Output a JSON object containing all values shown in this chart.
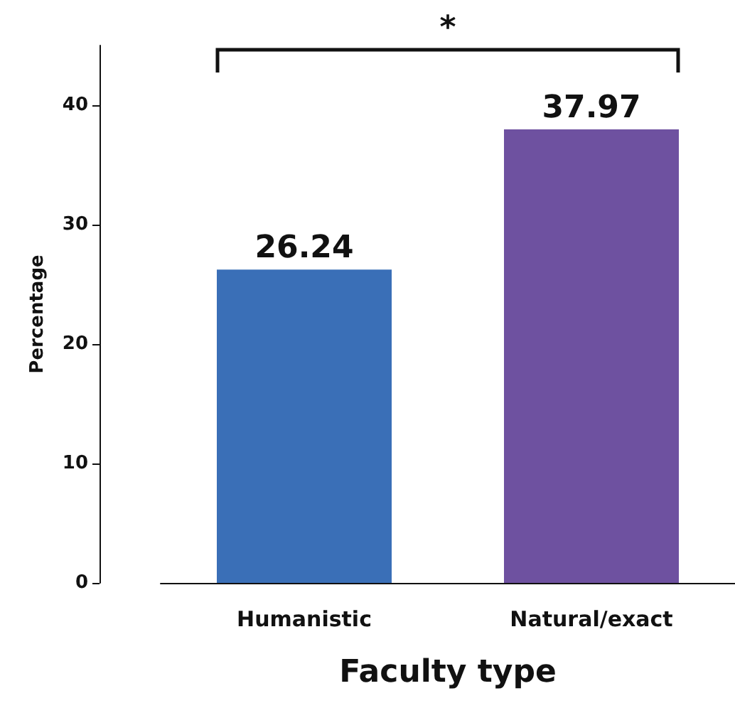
{
  "chart_data": {
    "type": "bar",
    "xlabel": "Faculty type",
    "ylabel": "Percentage",
    "categories": [
      "Humanistic",
      "Natural/exact"
    ],
    "values": [
      26.24,
      37.97
    ],
    "colors": [
      "#3a6fb7",
      "#6e51a0"
    ],
    "ylim": [
      0,
      45
    ],
    "yticks": [
      0,
      10,
      20,
      30,
      40
    ],
    "grid": false,
    "data_labels": true,
    "annotations": [
      "*"
    ]
  }
}
